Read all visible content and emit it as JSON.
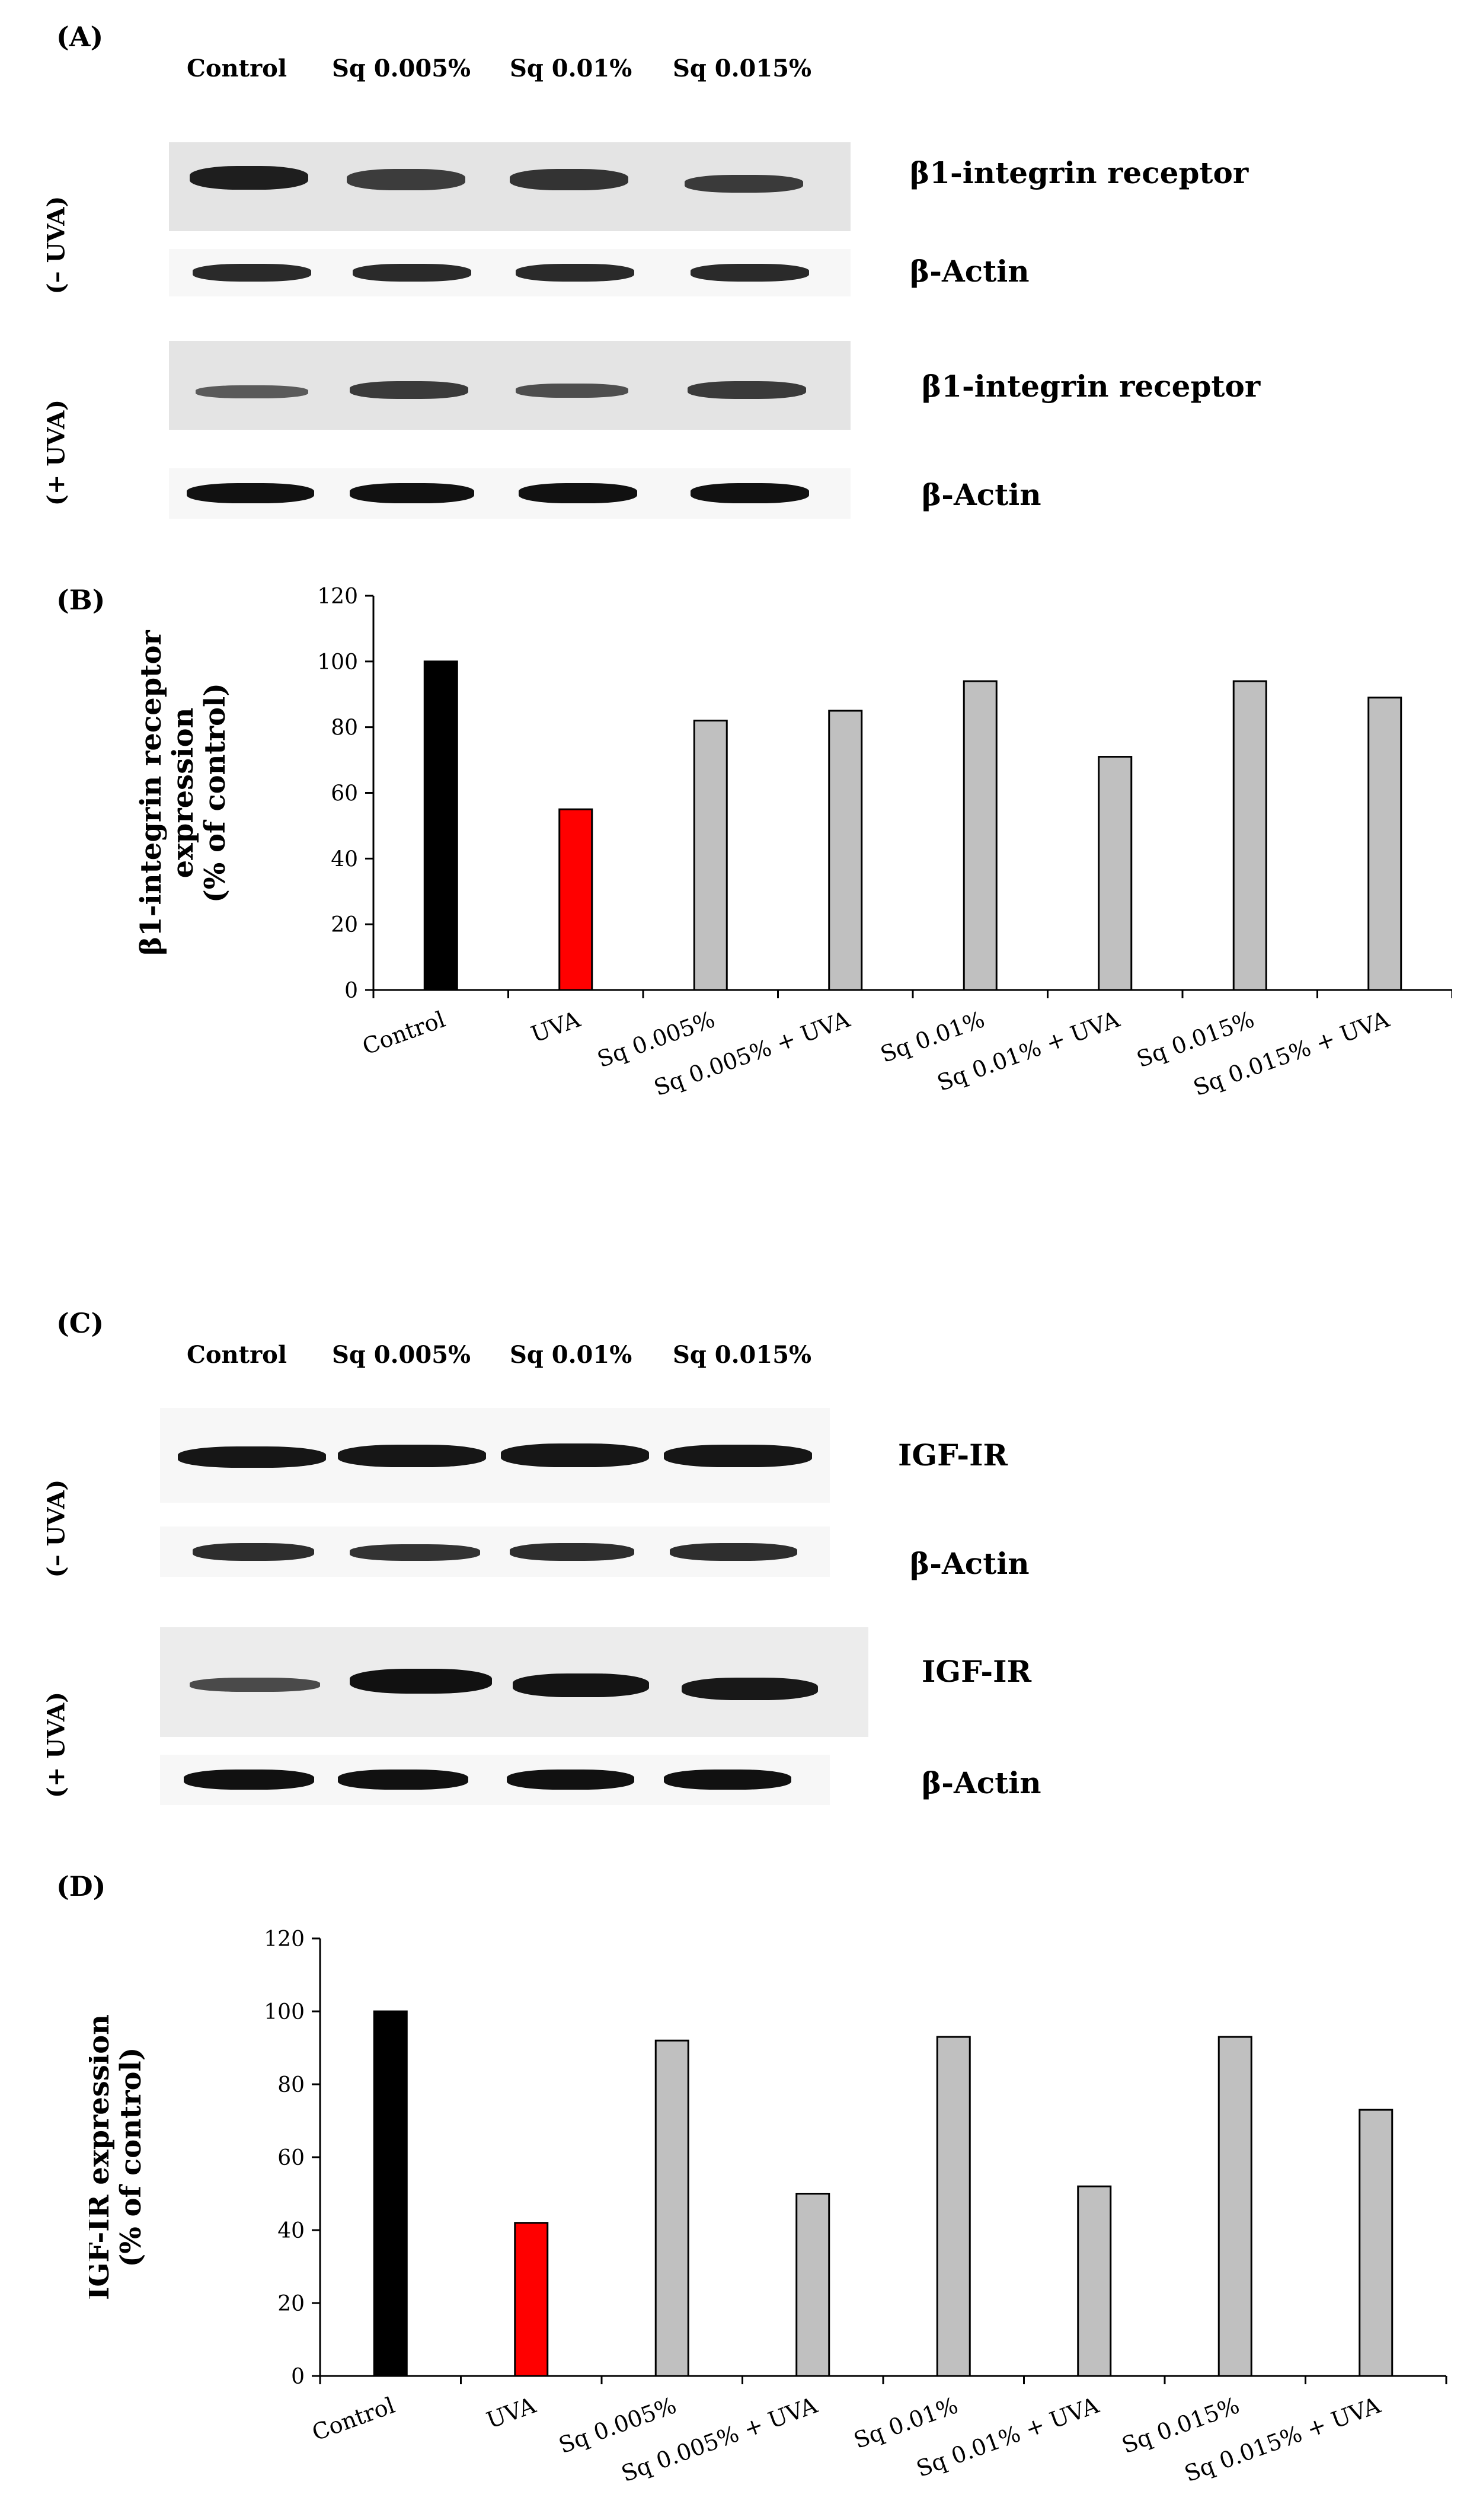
{
  "panels": {
    "a": {
      "letter": "(A)",
      "lanes": [
        "Control",
        "Sq 0.005%",
        "Sq 0.01%",
        "Sq 0.015%"
      ],
      "minus_uva": "(– UVA)",
      "plus_uva": "(+ UVA)",
      "band1": "β1-integrin receptor",
      "band2": "β-Actin",
      "band3": "β1-integrin receptor",
      "band4": "β-Actin"
    },
    "b": {
      "letter": "(B)"
    },
    "c": {
      "letter": "(C)",
      "lanes": [
        "Control",
        "Sq 0.005%",
        "Sq 0.01%",
        "Sq 0.015%"
      ],
      "minus_uva": "(– UVA)",
      "plus_uva": "(+ UVA)",
      "band1": "IGF-IR",
      "band2": "β-Actin",
      "band3": "IGF-IR",
      "band4": "β-Actin"
    },
    "d": {
      "letter": "(D)"
    }
  },
  "colors": {
    "control": "#000000",
    "uva": "#ff0000",
    "treatment": "#c0c0c0",
    "axis": "#000000"
  },
  "chart_data": [
    {
      "type": "bar",
      "panel": "B",
      "categories": [
        "Control",
        "UVA",
        "Sq 0.005%",
        "Sq 0.005% + UVA",
        "Sq 0.01%",
        "Sq 0.01% + UVA",
        "Sq 0.015%",
        "Sq 0.015% + UVA"
      ],
      "values": [
        100,
        55,
        82,
        85,
        94,
        71,
        94,
        89
      ],
      "bar_colors": [
        "#000000",
        "#ff0000",
        "#c0c0c0",
        "#c0c0c0",
        "#c0c0c0",
        "#c0c0c0",
        "#c0c0c0",
        "#c0c0c0"
      ],
      "ylabel_lines": [
        "β1-integrin receptor",
        "expression",
        "(% of control)"
      ],
      "yticks": [
        "0",
        "20",
        "40",
        "60",
        "80",
        "100",
        "120"
      ],
      "ylim": [
        0,
        120
      ],
      "grid": false
    },
    {
      "type": "bar",
      "panel": "D",
      "categories": [
        "Control",
        "UVA",
        "Sq 0.005%",
        "Sq 0.005% + UVA",
        "Sq 0.01%",
        "Sq 0.01% + UVA",
        "Sq 0.015%",
        "Sq 0.015% + UVA"
      ],
      "values": [
        100,
        42,
        92,
        50,
        93,
        52,
        93,
        73
      ],
      "bar_colors": [
        "#000000",
        "#ff0000",
        "#c0c0c0",
        "#c0c0c0",
        "#c0c0c0",
        "#c0c0c0",
        "#c0c0c0",
        "#c0c0c0"
      ],
      "ylabel_lines": [
        "IGF-IR expression",
        "(% of control)"
      ],
      "yticks": [
        "0",
        "20",
        "40",
        "60",
        "80",
        "100",
        "120"
      ],
      "ylim": [
        0,
        120
      ],
      "grid": false
    }
  ]
}
